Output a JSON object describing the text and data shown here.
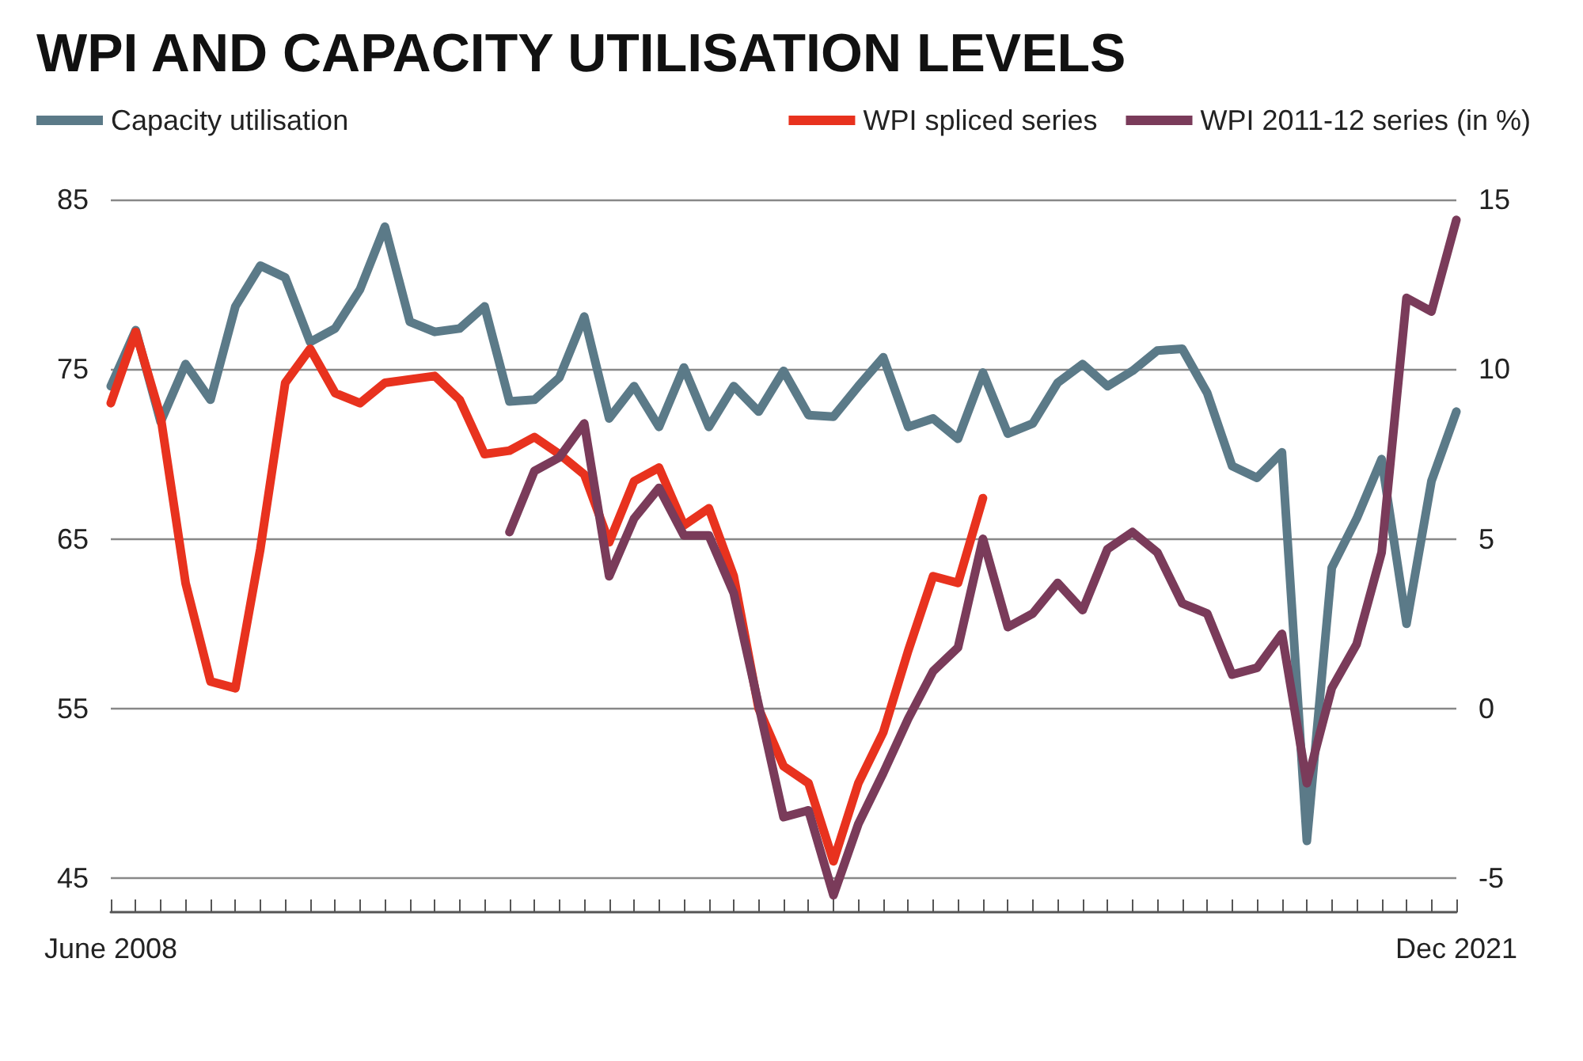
{
  "chart_data": {
    "type": "line",
    "title": "WPI AND CAPACITY UTILISATION LEVELS",
    "categories": [
      "June 2008",
      null,
      null,
      null,
      null,
      null,
      null,
      null,
      null,
      null,
      null,
      null,
      null,
      null,
      null,
      null,
      null,
      null,
      null,
      null,
      null,
      null,
      null,
      null,
      null,
      null,
      null,
      null,
      null,
      null,
      null,
      null,
      null,
      null,
      null,
      null,
      null,
      null,
      null,
      null,
      null,
      null,
      null,
      null,
      null,
      null,
      null,
      null,
      null,
      null,
      null,
      null,
      null,
      null,
      "Dec 2021"
    ],
    "series": [
      {
        "name": "Capacity utilisation",
        "color": "#5b7a88",
        "values": [
          74,
          77.3,
          71.9,
          75.3,
          73.2,
          78.7,
          81.1,
          80.4,
          76.6,
          77.4,
          79.7,
          83.4,
          77.8,
          77.2,
          77.4,
          78.7,
          73.1,
          73.2,
          74.5,
          78.1,
          72.1,
          74,
          71.6,
          75.1,
          71.6,
          74,
          72.5,
          74.9,
          72.3,
          72.2,
          74,
          75.7,
          71.6,
          72.1,
          70.9,
          74.8,
          71.2,
          71.8,
          74.2,
          75.3,
          74,
          74.9,
          76.1,
          76.2,
          73.6,
          69.3,
          68.6,
          70.1,
          47.2,
          63.3,
          66.2,
          69.7,
          60,
          68.4,
          72.5
        ]
      },
      {
        "name": "WPI spliced series",
        "color": "#e8321e",
        "axis": "y2",
        "values": [
          9.0,
          11.1,
          8.6,
          3.7,
          0.8,
          0.6,
          4.7,
          9.6,
          10.6,
          9.3,
          9.0,
          9.6,
          9.7,
          9.8,
          9.1,
          7.5,
          7.6,
          8.0,
          7.5,
          6.9,
          4.9,
          6.7,
          7.1,
          5.4,
          5.9,
          3.9,
          0,
          -1.7,
          -2.2,
          -4.5,
          -2.2,
          -0.7,
          1.7,
          3.9,
          3.7,
          6.2,
          null,
          null,
          null,
          null,
          null,
          null,
          null,
          null,
          null,
          null,
          null,
          null,
          null,
          null,
          null,
          null,
          null,
          null,
          null
        ]
      },
      {
        "name": "WPI 2011-12 series (in %)",
        "color": "#7a3b5a",
        "axis": "y2",
        "values": [
          null,
          null,
          null,
          null,
          null,
          null,
          null,
          null,
          null,
          null,
          null,
          null,
          null,
          null,
          null,
          null,
          5.2,
          7.0,
          7.4,
          8.4,
          3.9,
          5.6,
          6.5,
          5.1,
          5.1,
          3.4,
          0.1,
          -3.2,
          -3.0,
          -5.5,
          -3.4,
          -1.9,
          -0.3,
          1.1,
          1.8,
          5.0,
          2.4,
          2.8,
          3.7,
          2.9,
          4.7,
          5.2,
          4.6,
          3.1,
          2.8,
          1.0,
          1.2,
          2.2,
          -2.2,
          0.6,
          1.9,
          4.6,
          12.1,
          11.7,
          14.4
        ]
      }
    ],
    "ylim": [
      43,
      85
    ],
    "yticks": [
      45,
      55,
      65,
      75,
      85
    ],
    "y2lim": [
      -6,
      15
    ],
    "y2ticks": [
      -5,
      0,
      5,
      10,
      15
    ],
    "grid": "y",
    "legend": "top",
    "marker": "none",
    "line_style": "solid"
  }
}
